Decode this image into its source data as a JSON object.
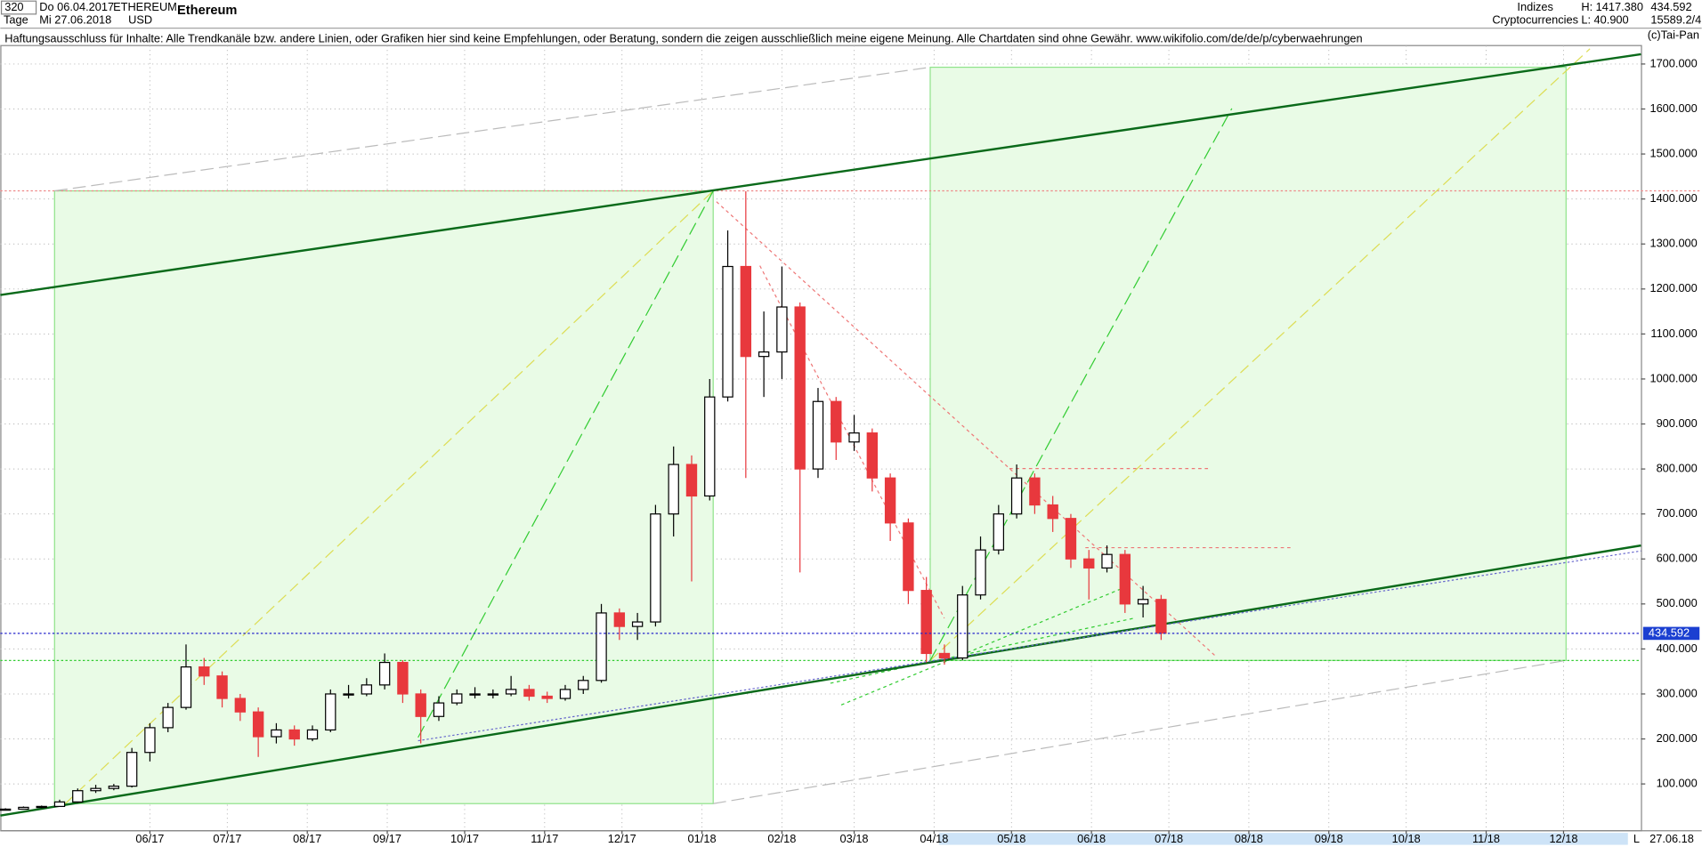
{
  "header": {
    "interval": "320",
    "start": "Do 06.04.2017",
    "period": "Tage",
    "end": "Mi 27.06.2018",
    "symbol": "ETHEREUM",
    "currency": "USD",
    "name": "Ethereum",
    "group": "Indizes",
    "sector": "Cryptocurrencies",
    "high": "H: 1417.380",
    "low": "L: 40.900",
    "last": "434.592",
    "volume": "15589.2/4",
    "disclaimer": "Haftungsausschluss für Inhalte: Alle Trendkanäle bzw. andere Linien, oder Grafiken hier sind keine Empfehlungen, oder Beratung, sondern die zeigen ausschließlich meine eigene Meinung. Alle Chartdaten sind ohne Gewähr.  www.wikifolio.com/de/de/p/cyberwaehrungen",
    "copyright": "(c)Tai-Pan",
    "footer_date": "27.06.18",
    "footer_mode": "L"
  },
  "chart_data": {
    "type": "candlestick",
    "x": [
      0,
      7,
      14,
      21,
      28,
      35,
      42,
      49,
      56,
      63,
      70,
      77,
      84,
      91,
      98,
      105,
      112,
      119,
      126,
      133,
      140,
      147,
      154,
      161,
      168,
      175,
      182,
      189,
      196,
      203,
      210,
      217,
      224,
      231,
      238,
      245,
      252,
      259,
      266,
      273,
      280,
      287,
      294,
      301,
      308,
      315,
      322,
      329,
      336,
      343,
      350,
      357,
      364,
      371,
      378,
      385,
      392,
      399,
      406,
      413,
      420,
      427,
      434,
      441,
      448
    ],
    "open": [
      42,
      44,
      48,
      50,
      60,
      85,
      90,
      95,
      170,
      225,
      270,
      360,
      340,
      290,
      260,
      205,
      220,
      200,
      220,
      300,
      300,
      320,
      370,
      300,
      250,
      280,
      300,
      300,
      300,
      310,
      295,
      290,
      310,
      330,
      480,
      450,
      460,
      700,
      810,
      740,
      960,
      1250,
      1050,
      1060,
      1160,
      800,
      950,
      860,
      880,
      780,
      680,
      530,
      390,
      380,
      520,
      620,
      700,
      780,
      720,
      690,
      600,
      580,
      610,
      500,
      510
    ],
    "high": [
      46,
      50,
      52,
      65,
      90,
      98,
      100,
      180,
      235,
      280,
      410,
      380,
      350,
      300,
      270,
      235,
      230,
      230,
      310,
      320,
      335,
      390,
      375,
      310,
      295,
      310,
      315,
      310,
      340,
      320,
      305,
      320,
      340,
      500,
      490,
      480,
      720,
      850,
      830,
      1000,
      1330,
      1417,
      1150,
      1250,
      1170,
      980,
      960,
      920,
      890,
      790,
      690,
      560,
      410,
      540,
      650,
      720,
      810,
      790,
      740,
      700,
      620,
      630,
      620,
      540,
      520
    ],
    "low": [
      41,
      43,
      46,
      49,
      58,
      80,
      86,
      92,
      150,
      215,
      265,
      320,
      270,
      240,
      160,
      190,
      185,
      195,
      215,
      290,
      295,
      310,
      280,
      190,
      240,
      275,
      290,
      290,
      295,
      285,
      280,
      285,
      300,
      325,
      420,
      420,
      450,
      650,
      550,
      730,
      950,
      780,
      960,
      1000,
      570,
      780,
      820,
      840,
      750,
      640,
      500,
      370,
      365,
      375,
      510,
      610,
      690,
      700,
      660,
      580,
      510,
      570,
      480,
      470,
      420
    ],
    "close": [
      44,
      48,
      50,
      60,
      85,
      90,
      95,
      170,
      225,
      270,
      360,
      340,
      290,
      260,
      205,
      220,
      200,
      220,
      300,
      300,
      320,
      370,
      300,
      250,
      280,
      300,
      300,
      300,
      310,
      295,
      290,
      310,
      330,
      480,
      450,
      460,
      700,
      810,
      740,
      960,
      1250,
      1050,
      1060,
      1160,
      800,
      950,
      860,
      880,
      780,
      680,
      530,
      390,
      380,
      520,
      620,
      700,
      780,
      720,
      690,
      600,
      580,
      610,
      500,
      510,
      435
    ],
    "up_color": "#000000",
    "down_color": "#e8383d",
    "xlim": [
      -2,
      634
    ],
    "xticks": [
      {
        "value": 56,
        "label": "06/17"
      },
      {
        "value": 86,
        "label": "07/17"
      },
      {
        "value": 117,
        "label": "08/17"
      },
      {
        "value": 148,
        "label": "09/17"
      },
      {
        "value": 178,
        "label": "10/17"
      },
      {
        "value": 209,
        "label": "11/17"
      },
      {
        "value": 239,
        "label": "12/17"
      },
      {
        "value": 270,
        "label": "01/18"
      },
      {
        "value": 301,
        "label": "02/18"
      },
      {
        "value": 329,
        "label": "03/18"
      },
      {
        "value": 360,
        "label": "04/18"
      },
      {
        "value": 390,
        "label": "05/18"
      },
      {
        "value": 421,
        "label": "06/18"
      },
      {
        "value": 451,
        "label": "07/18"
      },
      {
        "value": 482,
        "label": "08/18"
      },
      {
        "value": 513,
        "label": "09/18"
      },
      {
        "value": 543,
        "label": "10/18"
      },
      {
        "value": 574,
        "label": "11/18"
      },
      {
        "value": 604,
        "label": "12/18"
      }
    ],
    "ylim": [
      -4,
      1741
    ],
    "yticks": [
      {
        "value": 100,
        "label": "100.000"
      },
      {
        "value": 200,
        "label": "200.000"
      },
      {
        "value": 300,
        "label": "300.000"
      },
      {
        "value": 400,
        "label": "400.000"
      },
      {
        "value": 500,
        "label": "500.000"
      },
      {
        "value": 600,
        "label": "600.000"
      },
      {
        "value": 700,
        "label": "700.000"
      },
      {
        "value": 800,
        "label": "800.000"
      },
      {
        "value": 900,
        "label": "900.000"
      },
      {
        "value": 1000,
        "label": "1000.000"
      },
      {
        "value": 1100,
        "label": "1100.000"
      },
      {
        "value": 1200,
        "label": "1200.000"
      },
      {
        "value": 1300,
        "label": "1300.000"
      },
      {
        "value": 1400,
        "label": "1400.000"
      },
      {
        "value": 1500,
        "label": "1500.000"
      },
      {
        "value": 1600,
        "label": "1600.000"
      },
      {
        "value": 1700,
        "label": "1700.000"
      }
    ],
    "grid": true,
    "last_price": {
      "value": 434.592,
      "label": "434.592"
    }
  }
}
